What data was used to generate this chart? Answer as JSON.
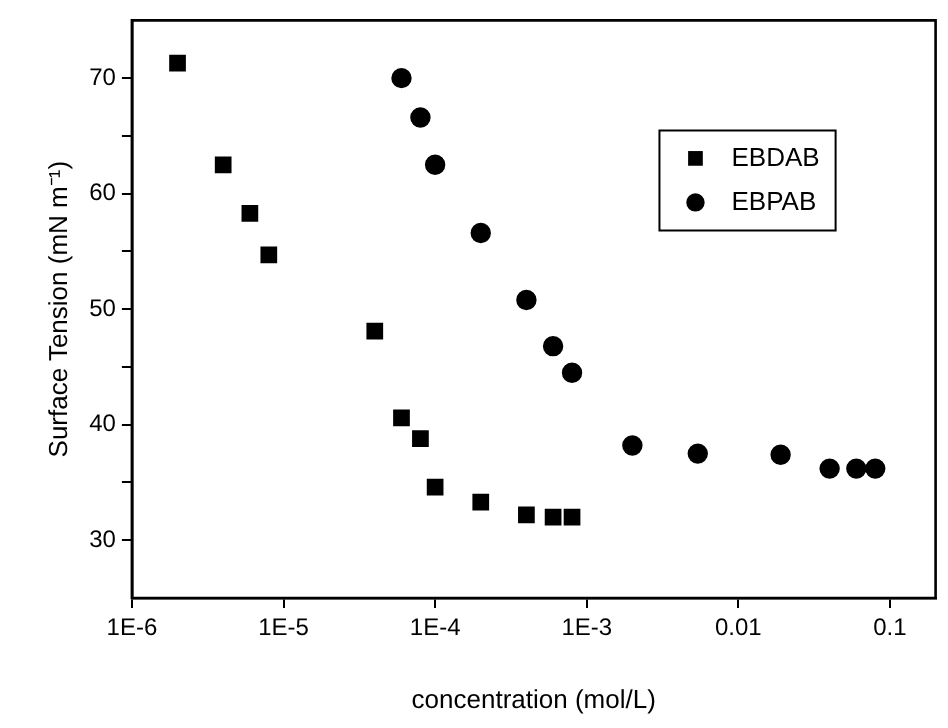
{
  "chart_data": {
    "type": "scatter",
    "xlabel": "concentration (mol/L)",
    "ylabel": "Surface Tension (mN m⁻¹)",
    "log": "x",
    "xlim": [
      1e-06,
      0.2
    ],
    "xticks": [
      {
        "value": 1e-06,
        "label": "1E-6"
      },
      {
        "value": 1e-05,
        "label": "1E-5"
      },
      {
        "value": 0.0001,
        "label": "1E-4"
      },
      {
        "value": 0.001,
        "label": "1E-3"
      },
      0.01,
      0.1
    ],
    "ylim": [
      25,
      75
    ],
    "yticks": [
      30,
      {
        "value": 35,
        "label": null
      },
      40,
      {
        "value": 45,
        "label": null
      },
      50,
      {
        "value": 55,
        "label": null
      },
      60,
      {
        "value": 65,
        "label": null
      },
      70
    ],
    "grid": false,
    "legend": "top right",
    "series": [
      {
        "name": "EBDAB",
        "color": "#000000",
        "marker": "square",
        "x": [
          2e-06,
          4e-06,
          6e-06,
          8e-06,
          4e-05,
          6e-05,
          8e-05,
          0.0001,
          0.0002,
          0.0004,
          0.0006,
          0.0008
        ],
        "values": [
          71.3,
          62.5,
          58.3,
          54.7,
          48.1,
          40.6,
          38.8,
          34.6,
          33.3,
          32.2,
          32.0,
          32.0
        ]
      },
      {
        "name": "EBPAB",
        "color": "#000000",
        "marker": "circle",
        "x": [
          6e-05,
          8e-05,
          0.0001,
          0.0002,
          0.0004,
          0.0006,
          0.0008,
          0.002,
          0.0054,
          0.019,
          0.04,
          0.06,
          0.08
        ],
        "values": [
          70.0,
          66.6,
          62.5,
          56.6,
          50.8,
          46.8,
          44.5,
          38.2,
          37.5,
          37.4,
          36.2,
          36.2,
          36.2
        ]
      }
    ]
  }
}
